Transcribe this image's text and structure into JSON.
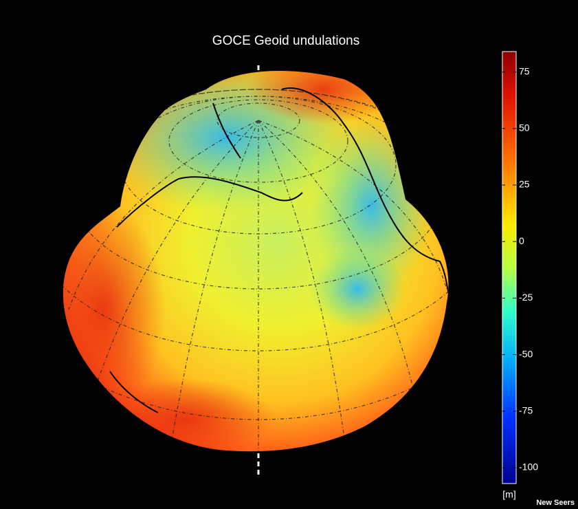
{
  "title": "GOCE Geoid undulations",
  "colorbar": {
    "lim": [
      -107,
      84
    ],
    "ticks": [
      75,
      50,
      25,
      0,
      -25,
      -50,
      -75,
      -100
    ],
    "unit": "[m]"
  },
  "watermark": "New Seers"
}
